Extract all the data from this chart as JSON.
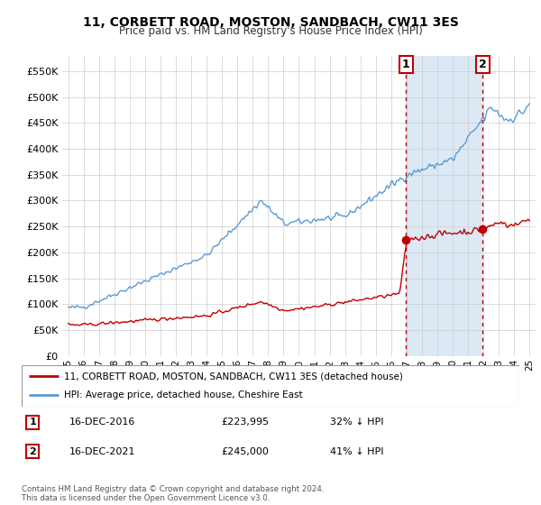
{
  "title": "11, CORBETT ROAD, MOSTON, SANDBACH, CW11 3ES",
  "subtitle": "Price paid vs. HM Land Registry's House Price Index (HPI)",
  "ylabel_ticks": [
    "£0",
    "£50K",
    "£100K",
    "£150K",
    "£200K",
    "£250K",
    "£300K",
    "£350K",
    "£400K",
    "£450K",
    "£500K",
    "£550K"
  ],
  "ytick_vals": [
    0,
    50000,
    100000,
    150000,
    200000,
    250000,
    300000,
    350000,
    400000,
    450000,
    500000,
    550000
  ],
  "ylim": [
    0,
    580000
  ],
  "hpi_color": "#5b9bd5",
  "price_color": "#c00000",
  "shade_color": "#dce9f5",
  "grid_color": "#cccccc",
  "background_color": "#ffffff",
  "legend_label_price": "11, CORBETT ROAD, MOSTON, SANDBACH, CW11 3ES (detached house)",
  "legend_label_hpi": "HPI: Average price, detached house, Cheshire East",
  "annotation1_date": "16-DEC-2016",
  "annotation1_price": "£223,995",
  "annotation1_pct": "32% ↓ HPI",
  "annotation2_date": "16-DEC-2021",
  "annotation2_price": "£245,000",
  "annotation2_pct": "41% ↓ HPI",
  "copyright_text": "Contains HM Land Registry data © Crown copyright and database right 2024.\nThis data is licensed under the Open Government Licence v3.0.",
  "sale1_year": 2016.958,
  "sale2_year": 2021.958,
  "sale1_price": 223995,
  "sale2_price": 245000
}
